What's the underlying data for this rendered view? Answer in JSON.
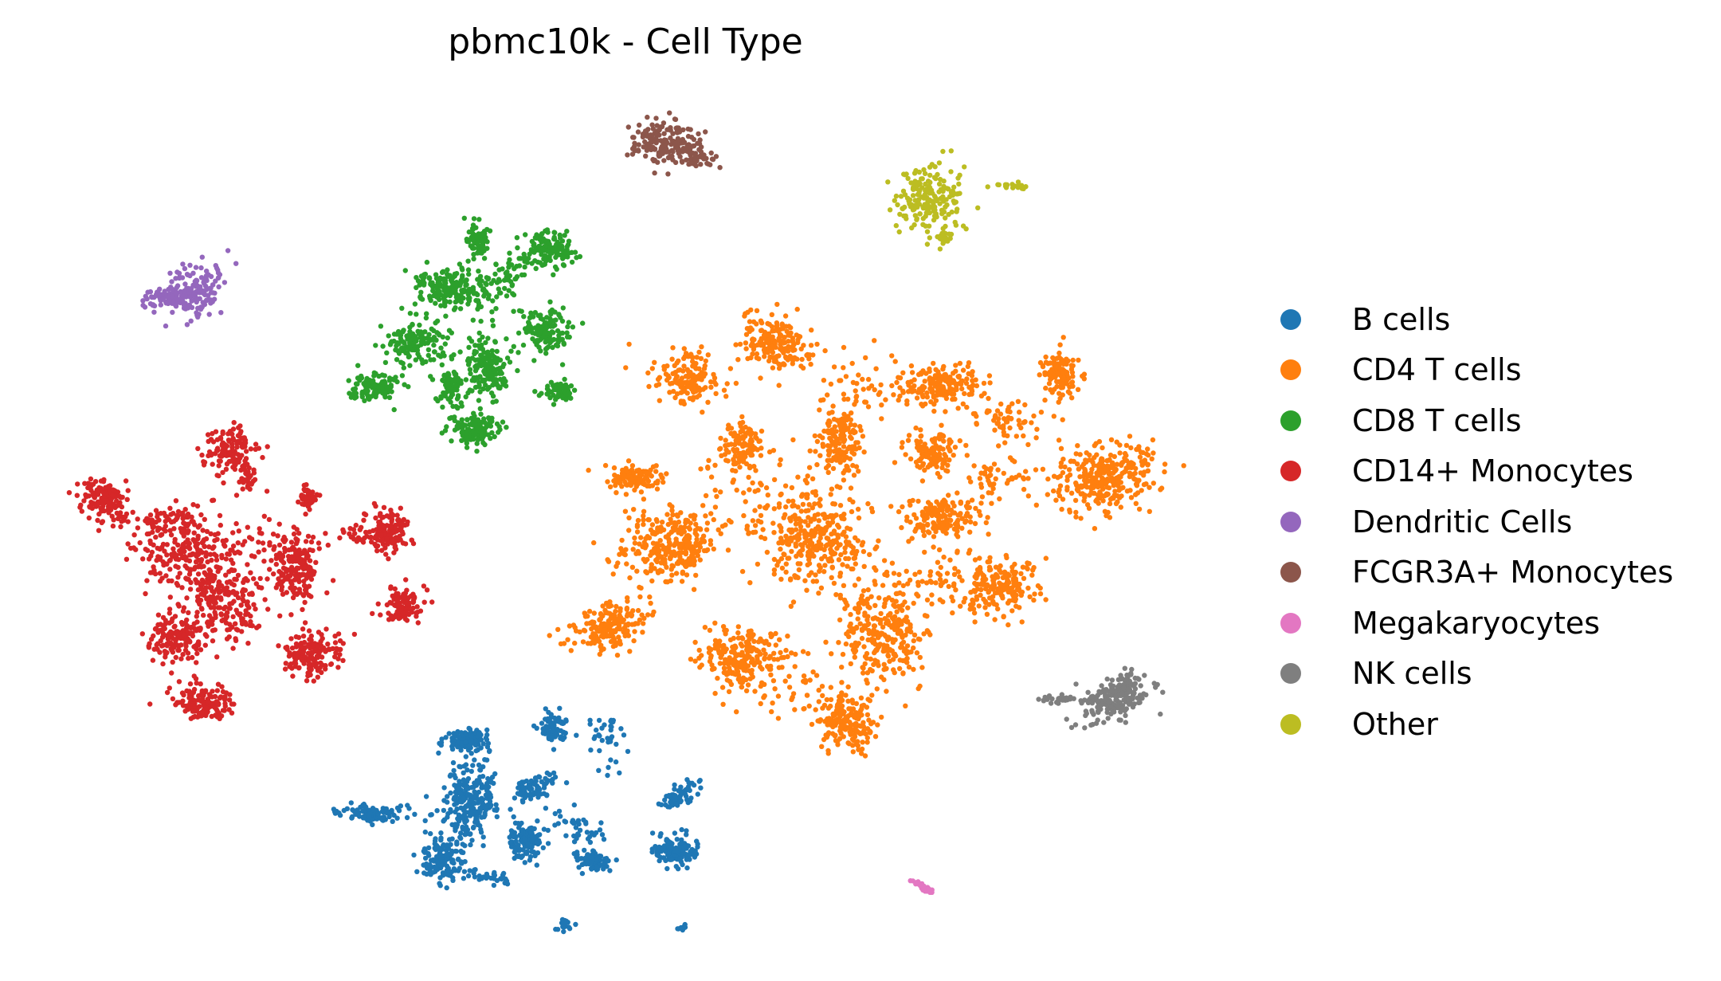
{
  "chart_data": {
    "type": "scatter",
    "title": "pbmc10k - Cell Type",
    "xlabel": "",
    "ylabel": "",
    "axes_visible": false,
    "grid": false,
    "legend_position": "right",
    "marker_size": "small",
    "series": [
      {
        "name": "B cells",
        "color": "#1f77b4",
        "clusters": [
          {
            "cx": 585,
            "cy": 930,
            "rx": 26,
            "ry": 14,
            "n": 120,
            "angle": 0
          },
          {
            "cx": 695,
            "cy": 915,
            "rx": 16,
            "ry": 18,
            "n": 90,
            "angle": 0
          },
          {
            "cx": 470,
            "cy": 1020,
            "rx": 36,
            "ry": 10,
            "n": 100,
            "angle": 0
          },
          {
            "cx": 590,
            "cy": 1010,
            "rx": 35,
            "ry": 50,
            "n": 260,
            "angle": 10
          },
          {
            "cx": 670,
            "cy": 990,
            "rx": 26,
            "ry": 12,
            "n": 70,
            "angle": -20
          },
          {
            "cx": 660,
            "cy": 1055,
            "rx": 18,
            "ry": 22,
            "n": 110,
            "angle": 0
          },
          {
            "cx": 555,
            "cy": 1080,
            "rx": 28,
            "ry": 22,
            "n": 130,
            "angle": 0
          },
          {
            "cx": 745,
            "cy": 1080,
            "rx": 20,
            "ry": 12,
            "n": 80,
            "angle": 0
          },
          {
            "cx": 850,
            "cy": 1000,
            "rx": 22,
            "ry": 10,
            "n": 70,
            "angle": -30
          },
          {
            "cx": 848,
            "cy": 1068,
            "rx": 24,
            "ry": 18,
            "n": 120,
            "angle": 0
          },
          {
            "cx": 725,
            "cy": 1040,
            "rx": 40,
            "ry": 18,
            "n": 40,
            "angle": 30
          },
          {
            "cx": 765,
            "cy": 930,
            "rx": 22,
            "ry": 30,
            "n": 35,
            "angle": 0
          },
          {
            "cx": 612,
            "cy": 1100,
            "rx": 30,
            "ry": 10,
            "n": 30,
            "angle": 0
          },
          {
            "cx": 708,
            "cy": 1160,
            "rx": 10,
            "ry": 7,
            "n": 20,
            "angle": 0
          },
          {
            "cx": 855,
            "cy": 1165,
            "rx": 6,
            "ry": 5,
            "n": 10,
            "angle": 0
          }
        ]
      },
      {
        "name": "CD4 T cells",
        "color": "#ff7f0e",
        "clusters": [
          {
            "cx": 975,
            "cy": 430,
            "rx": 45,
            "ry": 28,
            "n": 180,
            "angle": 15
          },
          {
            "cx": 865,
            "cy": 475,
            "rx": 35,
            "ry": 28,
            "n": 150,
            "angle": 0
          },
          {
            "cx": 930,
            "cy": 560,
            "rx": 28,
            "ry": 30,
            "n": 110,
            "angle": 0
          },
          {
            "cx": 795,
            "cy": 600,
            "rx": 32,
            "ry": 18,
            "n": 110,
            "angle": 0
          },
          {
            "cx": 845,
            "cy": 680,
            "rx": 48,
            "ry": 42,
            "n": 260,
            "angle": 0
          },
          {
            "cx": 765,
            "cy": 785,
            "rx": 45,
            "ry": 25,
            "n": 180,
            "angle": -20
          },
          {
            "cx": 930,
            "cy": 825,
            "rx": 45,
            "ry": 32,
            "n": 210,
            "angle": 0
          },
          {
            "cx": 1025,
            "cy": 680,
            "rx": 55,
            "ry": 60,
            "n": 320,
            "angle": -20
          },
          {
            "cx": 1055,
            "cy": 555,
            "rx": 25,
            "ry": 40,
            "n": 150,
            "angle": 0
          },
          {
            "cx": 1105,
            "cy": 795,
            "rx": 45,
            "ry": 55,
            "n": 270,
            "angle": 0
          },
          {
            "cx": 1065,
            "cy": 905,
            "rx": 35,
            "ry": 30,
            "n": 180,
            "angle": 0
          },
          {
            "cx": 1180,
            "cy": 485,
            "rx": 50,
            "ry": 22,
            "n": 180,
            "angle": 0
          },
          {
            "cx": 1170,
            "cy": 570,
            "rx": 30,
            "ry": 22,
            "n": 120,
            "angle": 0
          },
          {
            "cx": 1185,
            "cy": 650,
            "rx": 45,
            "ry": 22,
            "n": 160,
            "angle": 0
          },
          {
            "cx": 1255,
            "cy": 735,
            "rx": 45,
            "ry": 30,
            "n": 190,
            "angle": 0
          },
          {
            "cx": 1330,
            "cy": 470,
            "rx": 22,
            "ry": 25,
            "n": 110,
            "angle": 0
          },
          {
            "cx": 1385,
            "cy": 600,
            "rx": 60,
            "ry": 35,
            "n": 300,
            "angle": -10
          },
          {
            "cx": 1270,
            "cy": 530,
            "rx": 50,
            "ry": 25,
            "n": 60,
            "angle": 20
          },
          {
            "cx": 1255,
            "cy": 600,
            "rx": 35,
            "ry": 25,
            "n": 45,
            "angle": 0
          },
          {
            "cx": 950,
            "cy": 620,
            "rx": 90,
            "ry": 60,
            "n": 70,
            "angle": 0
          },
          {
            "cx": 990,
            "cy": 860,
            "rx": 60,
            "ry": 40,
            "n": 50,
            "angle": 0
          },
          {
            "cx": 1170,
            "cy": 730,
            "rx": 60,
            "ry": 40,
            "n": 60,
            "angle": 0
          },
          {
            "cx": 1080,
            "cy": 480,
            "rx": 50,
            "ry": 40,
            "n": 40,
            "angle": 0
          },
          {
            "cx": 800,
            "cy": 700,
            "rx": 40,
            "ry": 40,
            "n": 30,
            "angle": 0
          }
        ]
      },
      {
        "name": "CD8 T cells",
        "color": "#2ca02c",
        "clusters": [
          {
            "cx": 600,
            "cy": 300,
            "rx": 12,
            "ry": 20,
            "n": 70,
            "angle": 0
          },
          {
            "cx": 692,
            "cy": 312,
            "rx": 25,
            "ry": 20,
            "n": 120,
            "angle": 0
          },
          {
            "cx": 560,
            "cy": 360,
            "rx": 35,
            "ry": 22,
            "n": 150,
            "angle": 0
          },
          {
            "cx": 630,
            "cy": 350,
            "rx": 50,
            "ry": 20,
            "n": 90,
            "angle": -25
          },
          {
            "cx": 685,
            "cy": 415,
            "rx": 30,
            "ry": 25,
            "n": 130,
            "angle": 0
          },
          {
            "cx": 520,
            "cy": 430,
            "rx": 35,
            "ry": 30,
            "n": 130,
            "angle": 0
          },
          {
            "cx": 610,
            "cy": 460,
            "rx": 25,
            "ry": 35,
            "n": 130,
            "angle": 0
          },
          {
            "cx": 470,
            "cy": 485,
            "rx": 30,
            "ry": 15,
            "n": 110,
            "angle": 0
          },
          {
            "cx": 565,
            "cy": 485,
            "rx": 15,
            "ry": 20,
            "n": 60,
            "angle": 0
          },
          {
            "cx": 700,
            "cy": 490,
            "rx": 20,
            "ry": 10,
            "n": 70,
            "angle": 0
          },
          {
            "cx": 595,
            "cy": 540,
            "rx": 25,
            "ry": 20,
            "n": 130,
            "angle": 0
          },
          {
            "cx": 590,
            "cy": 420,
            "rx": 60,
            "ry": 80,
            "n": 60,
            "angle": 0
          }
        ]
      },
      {
        "name": "CD14+ Monocytes",
        "color": "#d62728",
        "clusters": [
          {
            "cx": 290,
            "cy": 565,
            "rx": 30,
            "ry": 25,
            "n": 130,
            "angle": 0
          },
          {
            "cx": 310,
            "cy": 600,
            "rx": 10,
            "ry": 15,
            "n": 30,
            "angle": 0
          },
          {
            "cx": 130,
            "cy": 625,
            "rx": 30,
            "ry": 22,
            "n": 140,
            "angle": 25
          },
          {
            "cx": 385,
            "cy": 625,
            "rx": 12,
            "ry": 12,
            "n": 50,
            "angle": 0
          },
          {
            "cx": 490,
            "cy": 665,
            "rx": 25,
            "ry": 22,
            "n": 120,
            "angle": 0
          },
          {
            "cx": 230,
            "cy": 690,
            "rx": 55,
            "ry": 45,
            "n": 230,
            "angle": 0
          },
          {
            "cx": 370,
            "cy": 715,
            "rx": 28,
            "ry": 35,
            "n": 170,
            "angle": 0
          },
          {
            "cx": 280,
            "cy": 760,
            "rx": 45,
            "ry": 40,
            "n": 210,
            "angle": 0
          },
          {
            "cx": 220,
            "cy": 800,
            "rx": 30,
            "ry": 25,
            "n": 140,
            "angle": 0
          },
          {
            "cx": 390,
            "cy": 820,
            "rx": 30,
            "ry": 25,
            "n": 160,
            "angle": 0
          },
          {
            "cx": 505,
            "cy": 760,
            "rx": 25,
            "ry": 20,
            "n": 100,
            "angle": 0
          },
          {
            "cx": 255,
            "cy": 880,
            "rx": 40,
            "ry": 20,
            "n": 140,
            "angle": 0
          },
          {
            "cx": 215,
            "cy": 650,
            "rx": 45,
            "ry": 20,
            "n": 35,
            "angle": 0
          },
          {
            "cx": 320,
            "cy": 680,
            "rx": 50,
            "ry": 50,
            "n": 50,
            "angle": 0
          },
          {
            "cx": 440,
            "cy": 670,
            "rx": 30,
            "ry": 15,
            "n": 25,
            "angle": 0
          }
        ]
      },
      {
        "name": "Dendritic Cells",
        "color": "#9467bd",
        "clusters": [
          {
            "cx": 245,
            "cy": 365,
            "rx": 35,
            "ry": 28,
            "n": 150,
            "angle": -20
          },
          {
            "cx": 205,
            "cy": 375,
            "rx": 25,
            "ry": 12,
            "n": 60,
            "angle": 10
          }
        ]
      },
      {
        "name": "FCGR3A+ Monocytes",
        "color": "#8c564b",
        "clusters": [
          {
            "cx": 830,
            "cy": 180,
            "rx": 40,
            "ry": 25,
            "n": 170,
            "angle": 0
          },
          {
            "cx": 870,
            "cy": 195,
            "rx": 30,
            "ry": 12,
            "n": 50,
            "angle": 20
          }
        ]
      },
      {
        "name": "Megakaryocytes",
        "color": "#e377c2",
        "clusters": [
          {
            "cx": 1158,
            "cy": 1113,
            "rx": 15,
            "ry": 3,
            "n": 30,
            "angle": 32
          }
        ]
      },
      {
        "name": "NK cells",
        "color": "#7f7f7f",
        "clusters": [
          {
            "cx": 1395,
            "cy": 880,
            "rx": 45,
            "ry": 22,
            "n": 170,
            "angle": -20
          },
          {
            "cx": 1330,
            "cy": 878,
            "rx": 20,
            "ry": 5,
            "n": 30,
            "angle": 0
          },
          {
            "cx": 1415,
            "cy": 855,
            "rx": 15,
            "ry": 20,
            "n": 40,
            "angle": 0
          }
        ]
      },
      {
        "name": "Other",
        "color": "#bcbd22",
        "clusters": [
          {
            "cx": 1165,
            "cy": 250,
            "rx": 40,
            "ry": 40,
            "n": 190,
            "angle": 0
          },
          {
            "cx": 1268,
            "cy": 233,
            "rx": 18,
            "ry": 4,
            "n": 20,
            "angle": 0
          },
          {
            "cx": 1185,
            "cy": 298,
            "rx": 10,
            "ry": 6,
            "n": 20,
            "angle": 0
          }
        ]
      }
    ]
  }
}
